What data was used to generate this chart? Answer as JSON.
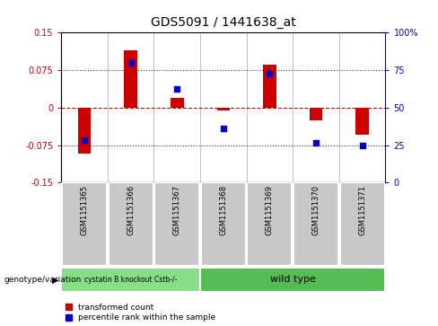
{
  "title": "GDS5091 / 1441638_at",
  "samples": [
    "GSM1151365",
    "GSM1151366",
    "GSM1151367",
    "GSM1151368",
    "GSM1151369",
    "GSM1151370",
    "GSM1151371"
  ],
  "red_bars": [
    -0.092,
    0.115,
    0.02,
    -0.005,
    0.085,
    -0.025,
    -0.055
  ],
  "blue_dots": [
    -0.065,
    0.09,
    0.038,
    -0.042,
    0.068,
    -0.07,
    -0.075
  ],
  "ylim_left": [
    -0.15,
    0.15
  ],
  "yticks_left": [
    -0.15,
    -0.075,
    0,
    0.075,
    0.15
  ],
  "yticks_right": [
    0,
    25,
    50,
    75,
    100
  ],
  "ylim_right": [
    0,
    100
  ],
  "red_color": "#cc0000",
  "blue_color": "#0000cc",
  "dashed_red": "#cc0000",
  "dot_line": "#333333",
  "group1_label": "cystatin B knockout Cstb-/-",
  "group2_label": "wild type",
  "group1_indices": [
    0,
    1,
    2
  ],
  "group2_indices": [
    3,
    4,
    5,
    6
  ],
  "group1_color": "#88dd88",
  "group2_color": "#55bb55",
  "bg_color": "#c8c8c8",
  "legend_red": "transformed count",
  "legend_blue": "percentile rank within the sample",
  "genotype_label": "genotype/variation"
}
